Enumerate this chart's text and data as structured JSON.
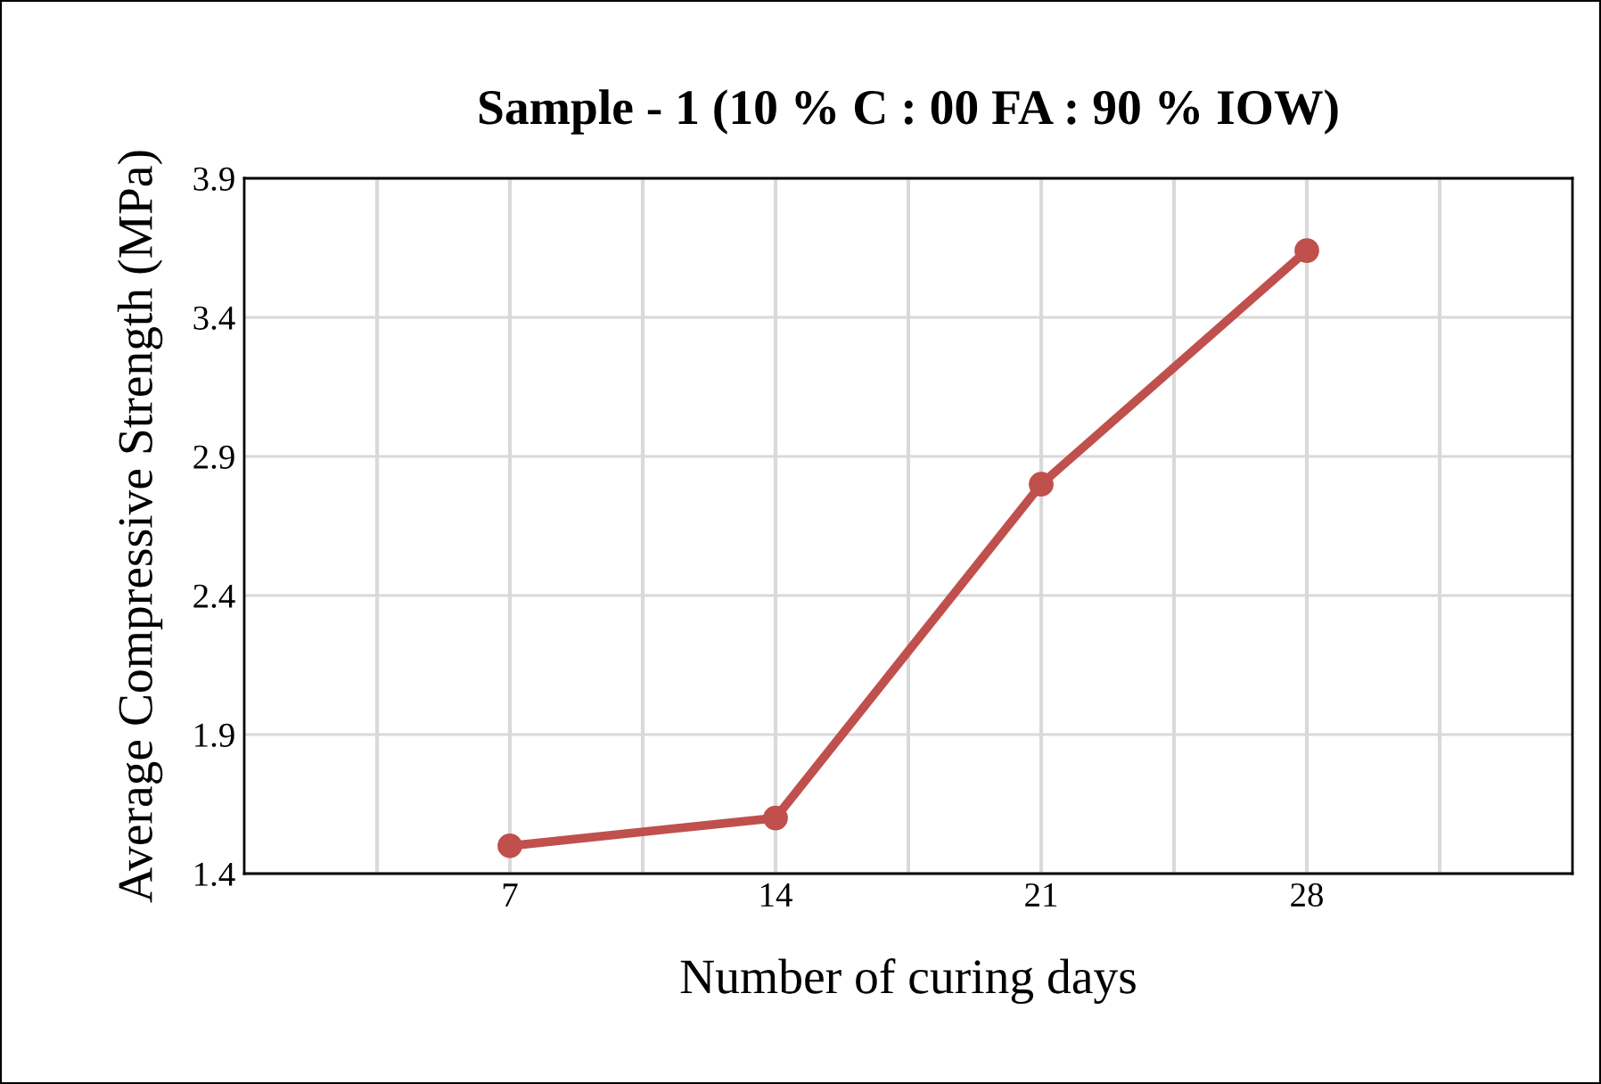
{
  "chart_data": {
    "type": "line",
    "title": "Sample - 1 (10 % C : 00 FA : 90 % IOW)",
    "xlabel": "Number of curing days",
    "ylabel": "Average Compressive Strength (MPa)",
    "categories": [
      "7",
      "14",
      "21",
      "28"
    ],
    "series": [
      {
        "color": "#c0504d",
        "values": [
          1.5,
          1.6,
          2.8,
          3.64
        ]
      }
    ],
    "ylim": [
      1.4,
      3.9
    ],
    "yticks": [
      1.4,
      1.9,
      2.4,
      2.9,
      3.4,
      3.9
    ],
    "grid": true,
    "marker": "circle",
    "line_style": "solid",
    "legend": false
  }
}
